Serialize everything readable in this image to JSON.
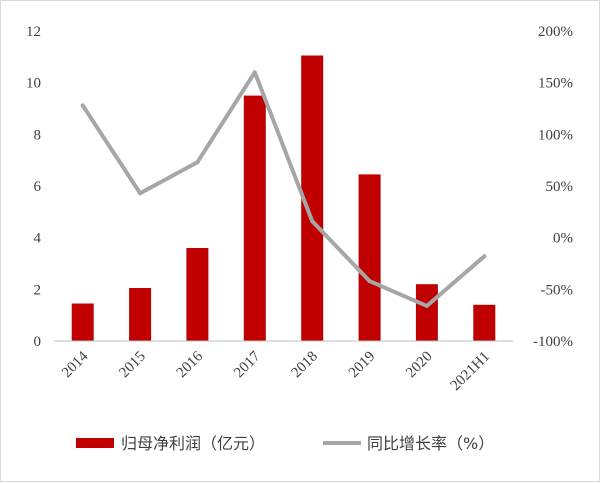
{
  "chart_data": {
    "type": "bar+line",
    "categories": [
      "2014",
      "2015",
      "2016",
      "2017",
      "2018",
      "2019",
      "2020",
      "2021H1"
    ],
    "series": [
      {
        "name": "归母净利润（亿元）",
        "type": "bar",
        "axis": "left",
        "color": "#c00000",
        "values": [
          1.45,
          2.05,
          3.6,
          9.5,
          11.05,
          6.45,
          2.2,
          1.4
        ]
      },
      {
        "name": "同比增长率（%）",
        "type": "line",
        "axis": "right",
        "color": "#a6a6a6",
        "values": [
          128,
          43,
          73,
          160,
          16,
          -42,
          -66,
          -18
        ]
      }
    ],
    "y_left": {
      "ylim": [
        0,
        12
      ],
      "ticks": [
        "0",
        "2",
        "4",
        "6",
        "8",
        "10",
        "12"
      ]
    },
    "y_right": {
      "ylim": [
        -100,
        200
      ],
      "ticks": [
        "-100%",
        "-50%",
        "0%",
        "50%",
        "100%",
        "150%",
        "200%"
      ]
    },
    "grid": false,
    "legend": "bottom"
  }
}
